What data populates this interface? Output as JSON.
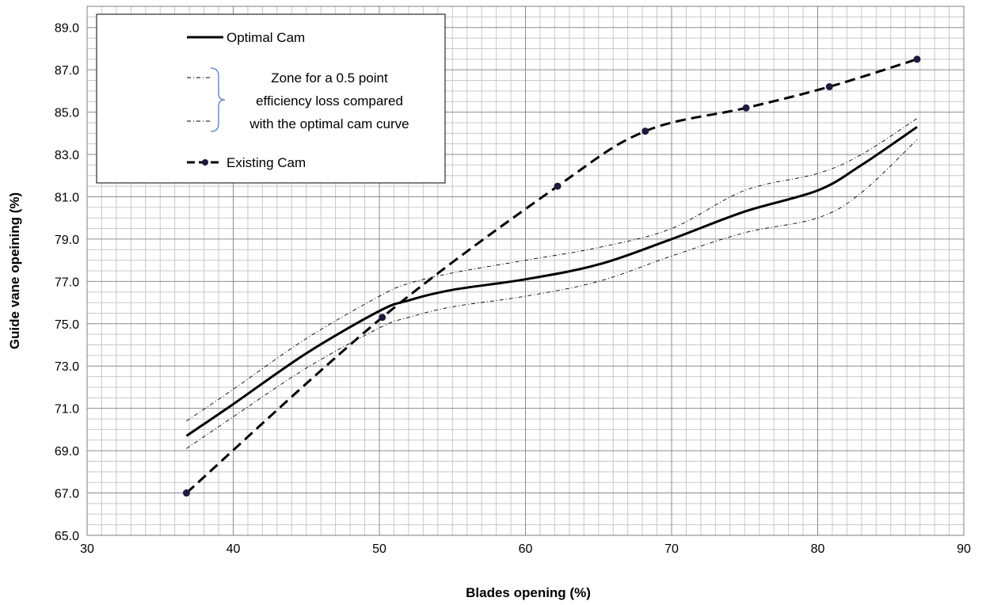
{
  "chart_data": {
    "type": "line",
    "xlabel": "Blades opening (%)",
    "ylabel": "Guide vane opeining (%)",
    "xlim": [
      30,
      90
    ],
    "ylim": [
      65,
      90
    ],
    "x_ticks": [
      "30",
      "40",
      "50",
      "60",
      "70",
      "80",
      "90"
    ],
    "y_ticks": [
      "65.0",
      "67.0",
      "69.0",
      "71.0",
      "73.0",
      "75.0",
      "77.0",
      "79.0",
      "81.0",
      "83.0",
      "85.0",
      "87.0",
      "89.0"
    ],
    "grid": true,
    "legend_placement": "top-left",
    "legend": {
      "optimal": "Optimal Cam",
      "zone_lines": [
        "Zone for a 0.5 point",
        "efficiency loss compared",
        "with the optimal cam curve"
      ],
      "existing": "Existing Cam"
    },
    "series": [
      {
        "name": "Optimal Cam",
        "style": "solid",
        "x": [
          36.8,
          40,
          45,
          50,
          52,
          55,
          60,
          65,
          70,
          75,
          80,
          83,
          86.8
        ],
        "y": [
          69.7,
          71.2,
          73.6,
          75.6,
          76.1,
          76.6,
          77.1,
          77.8,
          79.0,
          80.3,
          81.3,
          82.5,
          84.3
        ]
      },
      {
        "name": "Zone for a 0.5 point efficiency loss compared with the optimal cam curve",
        "style": "dash-dot",
        "x": [
          36.8,
          40,
          45,
          50,
          52,
          55,
          60,
          65,
          70,
          75,
          80,
          83,
          86.8
        ],
        "y": [
          70.4,
          71.9,
          74.3,
          76.3,
          76.9,
          77.4,
          78.0,
          78.6,
          79.5,
          81.3,
          82.1,
          83.0,
          84.7
        ]
      },
      {
        "name": "Zone for a 0.5 point efficiency loss compared with the optimal cam curve",
        "style": "dash-dot",
        "x": [
          36.8,
          40,
          45,
          50,
          52,
          55,
          60,
          65,
          70,
          75,
          80,
          83,
          86.8
        ],
        "y": [
          69.1,
          70.6,
          72.9,
          74.8,
          75.3,
          75.8,
          76.3,
          77.0,
          78.2,
          79.3,
          80.0,
          81.2,
          83.7
        ]
      },
      {
        "name": "Existing Cam",
        "style": "dashed-markers",
        "x": [
          36.8,
          50.2,
          62.2,
          68.2,
          75.1,
          80.8,
          86.8
        ],
        "y": [
          67.0,
          75.3,
          81.5,
          84.1,
          85.2,
          86.2,
          87.5
        ]
      }
    ],
    "colors": {
      "optimal": "#000000",
      "zone": "#000000",
      "existing": "#000000",
      "marker": "#1f1a3d",
      "bracket": "#4f81bd",
      "major_grid": "#8c8c8c",
      "minor_grid": "#c8c8c8"
    }
  }
}
